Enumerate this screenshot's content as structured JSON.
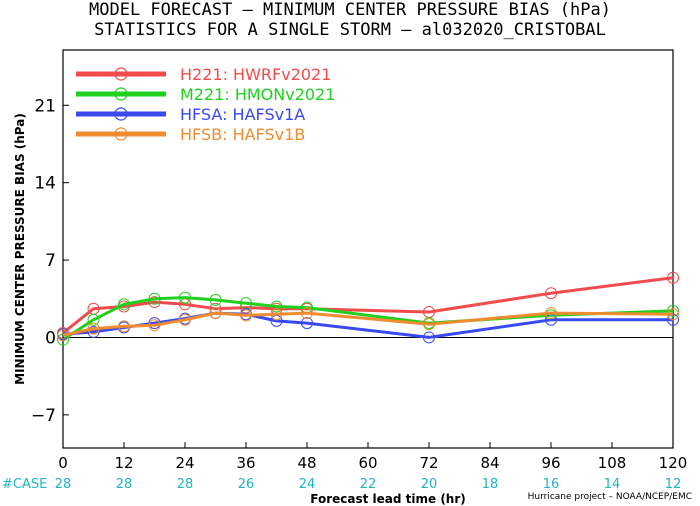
{
  "title_line1": "MODEL FORECAST – MINIMUM CENTER PRESSURE BIAS (hPa)",
  "title_line2": "STATISTICS FOR A SINGLE STORM – al032020_CRISTOBAL",
  "credit": "Hurricane project – NOAA/NCEP/EMC",
  "colors": {
    "H221": "#f24b4b",
    "M221": "#1fd01f",
    "HFSA": "#3a49f0",
    "HFSB": "#f08c30",
    "case_labels": "#1fb5c2"
  },
  "chart_data": {
    "type": "line",
    "xlabel": "Forecast lead time (hr)",
    "ylabel": "MINIMUM CENTER PRESSURE BIAS (hPa)",
    "xlim": [
      0,
      120
    ],
    "ylim": [
      -10,
      26
    ],
    "xticks": [
      0,
      12,
      24,
      36,
      48,
      60,
      72,
      84,
      96,
      108,
      120
    ],
    "yticks": [
      -7,
      0,
      7,
      14,
      21
    ],
    "zero_line": true,
    "legend_position": "top-left",
    "case_label": "#CASE",
    "case_counts": [
      28,
      28,
      28,
      26,
      24,
      22,
      20,
      18,
      16,
      14,
      12
    ],
    "series": [
      {
        "key": "H221",
        "name": "H221:  HWRFv2021",
        "x": [
          0,
          6,
          12,
          18,
          24,
          30,
          36,
          42,
          48,
          72,
          96,
          120
        ],
        "y": [
          0.4,
          2.6,
          2.8,
          3.2,
          3.0,
          2.6,
          2.7,
          2.6,
          2.6,
          2.3,
          4.0,
          5.4
        ]
      },
      {
        "key": "M221",
        "name": "M221:  HMONv2021",
        "x": [
          0,
          6,
          12,
          18,
          24,
          30,
          36,
          42,
          48,
          72,
          96,
          120
        ],
        "y": [
          -0.2,
          1.6,
          3.0,
          3.5,
          3.6,
          3.4,
          3.1,
          2.8,
          2.7,
          1.3,
          2.0,
          2.4
        ]
      },
      {
        "key": "HFSA",
        "name": "HFSA:  HAFSv1A",
        "x": [
          0,
          6,
          12,
          18,
          24,
          30,
          36,
          42,
          48,
          72,
          96,
          120
        ],
        "y": [
          0.3,
          0.5,
          0.9,
          1.3,
          1.7,
          2.2,
          2.1,
          1.5,
          1.3,
          0.0,
          1.6,
          1.6
        ]
      },
      {
        "key": "HFSB",
        "name": "HFSB:  HAFSv1B",
        "x": [
          0,
          6,
          12,
          18,
          24,
          30,
          36,
          42,
          48,
          72,
          96,
          120
        ],
        "y": [
          0.2,
          0.8,
          1.0,
          1.1,
          1.6,
          2.2,
          2.0,
          2.1,
          2.2,
          1.2,
          2.2,
          2.1
        ]
      }
    ]
  }
}
